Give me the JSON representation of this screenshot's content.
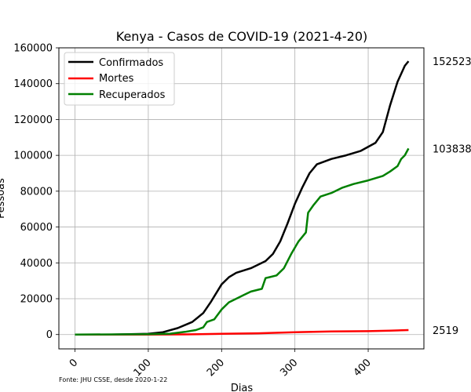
{
  "chart_data": {
    "type": "line",
    "title": "Kenya - Casos de COVID-19 (2021-4-20)",
    "xlabel": "Dias",
    "ylabel": "Pessoas",
    "source_note": "Fonte: JHU CSSE, desde 2020-1-22",
    "xlim": [
      -22,
      476
    ],
    "ylim": [
      -8000,
      160000
    ],
    "xticks": [
      0,
      100,
      200,
      300,
      400
    ],
    "yticks": [
      0,
      20000,
      40000,
      60000,
      80000,
      100000,
      120000,
      140000,
      160000
    ],
    "grid": true,
    "legend_position": "top-left",
    "series": [
      {
        "name": "Confirmados",
        "color": "#000000",
        "end_label": "152523",
        "points": [
          [
            0,
            0
          ],
          [
            50,
            0
          ],
          [
            100,
            450
          ],
          [
            120,
            1300
          ],
          [
            140,
            3600
          ],
          [
            160,
            7000
          ],
          [
            175,
            12000
          ],
          [
            185,
            18000
          ],
          [
            200,
            28000
          ],
          [
            210,
            32000
          ],
          [
            220,
            34500
          ],
          [
            240,
            37000
          ],
          [
            260,
            41000
          ],
          [
            270,
            45000
          ],
          [
            280,
            52000
          ],
          [
            290,
            62000
          ],
          [
            300,
            73000
          ],
          [
            310,
            82000
          ],
          [
            320,
            90000
          ],
          [
            330,
            95000
          ],
          [
            350,
            98000
          ],
          [
            370,
            100000
          ],
          [
            390,
            102500
          ],
          [
            410,
            107000
          ],
          [
            420,
            113000
          ],
          [
            430,
            128000
          ],
          [
            440,
            141000
          ],
          [
            450,
            150000
          ],
          [
            455,
            152523
          ]
        ]
      },
      {
        "name": "Mortes",
        "color": "#ff0000",
        "end_label": "2519",
        "points": [
          [
            0,
            0
          ],
          [
            100,
            10
          ],
          [
            150,
            100
          ],
          [
            200,
            400
          ],
          [
            250,
            700
          ],
          [
            300,
            1300
          ],
          [
            350,
            1700
          ],
          [
            400,
            1900
          ],
          [
            430,
            2150
          ],
          [
            455,
            2519
          ]
        ]
      },
      {
        "name": "Recuperados",
        "color": "#008000",
        "end_label": "103838",
        "points": [
          [
            0,
            0
          ],
          [
            100,
            200
          ],
          [
            130,
            500
          ],
          [
            150,
            1500
          ],
          [
            165,
            2500
          ],
          [
            175,
            4000
          ],
          [
            180,
            7000
          ],
          [
            190,
            8500
          ],
          [
            200,
            14000
          ],
          [
            210,
            18000
          ],
          [
            220,
            20000
          ],
          [
            230,
            22000
          ],
          [
            240,
            24000
          ],
          [
            255,
            25500
          ],
          [
            260,
            31500
          ],
          [
            265,
            32000
          ],
          [
            275,
            33000
          ],
          [
            285,
            37000
          ],
          [
            295,
            45000
          ],
          [
            305,
            52000
          ],
          [
            315,
            57000
          ],
          [
            318,
            68000
          ],
          [
            325,
            72000
          ],
          [
            335,
            77000
          ],
          [
            350,
            79000
          ],
          [
            365,
            82000
          ],
          [
            380,
            84000
          ],
          [
            400,
            86000
          ],
          [
            420,
            88500
          ],
          [
            430,
            91000
          ],
          [
            440,
            94000
          ],
          [
            445,
            98000
          ],
          [
            450,
            100000
          ],
          [
            455,
            103838
          ]
        ]
      }
    ]
  }
}
